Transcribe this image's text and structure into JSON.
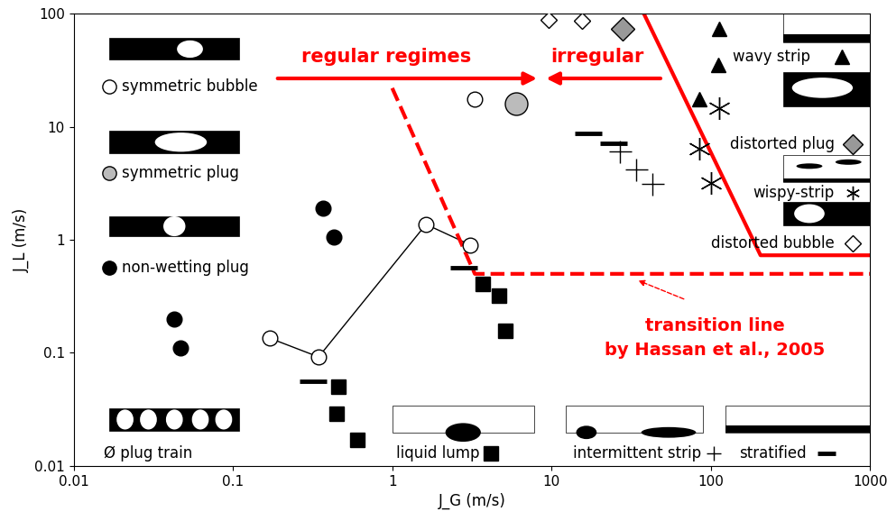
{
  "chart_data": {
    "type": "scatter",
    "x_label": "J_G (m/s)",
    "y_label": "J_L (m/s)",
    "log": true,
    "xlim": [
      0.01,
      1000
    ],
    "ylim": [
      0.01,
      100
    ],
    "xticks": [
      0.01,
      0.1,
      1,
      10,
      100,
      1000
    ],
    "yticks": [
      0.01,
      0.1,
      1,
      10,
      100
    ],
    "series": [
      {
        "name": "symmetric bubble",
        "color": "#ffffff",
        "marker": "circle",
        "x": [
          0.17,
          0.345,
          1.63,
          3.1,
          3.3
        ],
        "values": [
          0.135,
          0.092,
          1.37,
          0.9,
          17.5
        ]
      },
      {
        "name": "symmetric plug",
        "color": "#bbbbbb",
        "marker": "circle",
        "x": [
          6.0
        ],
        "values": [
          16
        ]
      },
      {
        "name": "non-wetting plug",
        "color": "#000000",
        "marker": "circle",
        "x": [
          0.37,
          0.43,
          0.043,
          0.047
        ],
        "values": [
          1.9,
          1.05,
          0.2,
          0.11
        ]
      },
      {
        "name": "liquid lump",
        "color": "#000000",
        "marker": "square",
        "x": [
          0.46,
          0.45,
          0.6,
          3.7,
          4.7,
          5.1
        ],
        "values": [
          0.05,
          0.029,
          0.017,
          0.41,
          0.32,
          0.158
        ]
      },
      {
        "name": "intermittent strip",
        "color": "#000000",
        "marker": "plus",
        "x": [
          27,
          34,
          43
        ],
        "values": [
          6.0,
          4.2,
          3.1
        ]
      },
      {
        "name": "stratified",
        "color": "#000000",
        "marker": "dash",
        "x": [
          0.32,
          2.8,
          17,
          24.5
        ],
        "values": [
          0.056,
          0.57,
          8.7,
          7.2
        ]
      },
      {
        "name": "wavy strip",
        "color": "#000000",
        "marker": "triangle",
        "x": [
          113,
          112,
          85
        ],
        "values": [
          73,
          35,
          17.5
        ]
      },
      {
        "name": "distorted plug",
        "color": "#999999",
        "marker": "diamond",
        "x": [
          28
        ],
        "values": [
          73
        ]
      },
      {
        "name": "wispy-strip",
        "color": "#000000",
        "marker": "asterisk",
        "x": [
          113,
          85,
          100
        ],
        "values": [
          14.5,
          6.4,
          3.2
        ]
      },
      {
        "name": "distorted bubble",
        "color": "#ffffff",
        "marker": "diamond",
        "x": [
          9.6,
          15.5
        ],
        "values": [
          89,
          87
        ]
      },
      {
        "name": null,
        "type": "line",
        "color": "#000000",
        "line_style": "solid",
        "x": [
          0.17,
          0.345,
          1.63,
          3.1
        ],
        "values": [
          0.135,
          0.092,
          1.37,
          0.9
        ]
      },
      {
        "name": null,
        "type": "line",
        "color": "#ff0000",
        "line_style": "solid",
        "x": [
          38,
          205,
          1000
        ],
        "values": [
          100,
          0.73,
          0.73
        ]
      },
      {
        "name": null,
        "type": "line",
        "color": "#ff0000",
        "line_style": "dashed",
        "x": [
          1.0,
          3.3,
          1000
        ],
        "values": [
          22,
          0.5,
          0.5
        ]
      }
    ],
    "annotations": [
      {
        "text": "regular regimes",
        "color": "#ff0000"
      },
      {
        "text": "irregular",
        "color": "#ff0000"
      },
      {
        "text": "transition line\nby Hassan et al., 2005",
        "color": "#ff0000"
      },
      {
        "text": "Ø plug train",
        "color": "#000000"
      }
    ]
  }
}
